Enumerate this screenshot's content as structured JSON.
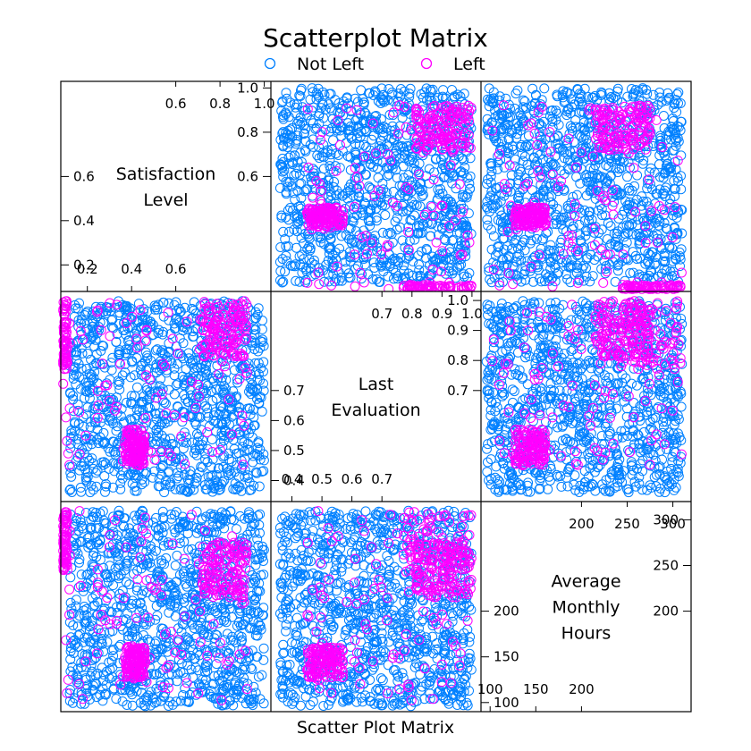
{
  "chart_data": {
    "type": "scatter",
    "title": "Scatterplot Matrix",
    "xlabel": "Scatter Plot Matrix",
    "legend": {
      "placement": "top",
      "marker": "circle"
    },
    "variables": [
      {
        "key": "satisfaction",
        "name_lines": [
          "Satisfaction",
          "Level"
        ],
        "range": [
          0.08,
          1.03
        ]
      },
      {
        "key": "evaluation",
        "name_lines": [
          "Last",
          "Evaluation"
        ],
        "range": [
          0.33,
          1.03
        ]
      },
      {
        "key": "hours",
        "name_lines": [
          "Average",
          "Monthly",
          "Hours"
        ],
        "range": [
          90,
          320
        ]
      }
    ],
    "diag_ticks": {
      "satisfaction": {
        "upper": [
          "0.6",
          "0.8",
          "1.0"
        ],
        "upper_values": [
          0.6,
          0.8,
          1.0
        ],
        "lower": [
          "0.2",
          "0.4",
          "0.6"
        ],
        "lower_values": [
          0.2,
          0.4,
          0.6
        ]
      },
      "evaluation": {
        "upper": [
          "0.7",
          "0.8",
          "0.9",
          "1.0"
        ],
        "upper_values": [
          0.7,
          0.8,
          0.9,
          1.0
        ],
        "lower": [
          "0.4",
          "0.5",
          "0.6",
          "0.7"
        ],
        "lower_values": [
          0.4,
          0.5,
          0.6,
          0.7
        ]
      },
      "hours": {
        "upper": [
          "200",
          "250",
          "300"
        ],
        "upper_values": [
          200,
          250,
          300
        ],
        "lower": [
          "100",
          "150",
          "200"
        ],
        "lower_values": [
          100,
          150,
          200
        ]
      }
    },
    "series": [
      {
        "name": "Not Left",
        "color": "#0080ff",
        "clusters": [
          {
            "satisfaction": [
              0.12,
              1.0
            ],
            "evaluation": [
              0.36,
              1.0
            ],
            "hours": [
              96,
              310
            ],
            "density": "high"
          }
        ]
      },
      {
        "name": "Left",
        "color": "#ff00ff",
        "clusters": [
          {
            "label": "low satisfaction, low evaluation, low hours",
            "satisfaction": [
              0.37,
              0.46
            ],
            "evaluation": [
              0.45,
              0.57
            ],
            "hours": [
              126,
              161
            ]
          },
          {
            "label": "very low satisfaction, high evaluation, high hours",
            "satisfaction": [
              0.09,
              0.11
            ],
            "evaluation": [
              0.77,
              1.0
            ],
            "hours": [
              245,
              310
            ]
          },
          {
            "label": "high satisfaction, high evaluation, high hours",
            "satisfaction": [
              0.72,
              0.92
            ],
            "evaluation": [
              0.81,
              1.0
            ],
            "hours": [
              215,
              275
            ]
          },
          {
            "label": "scattered",
            "satisfaction": [
              0.09,
              0.95
            ],
            "evaluation": [
              0.45,
              1.0
            ],
            "hours": [
              96,
              310
            ]
          }
        ]
      }
    ]
  }
}
